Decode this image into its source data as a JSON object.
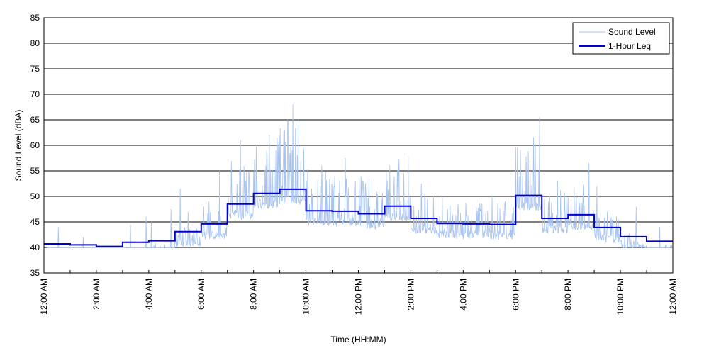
{
  "chart_data": {
    "type": "line",
    "xlabel": "Time (HH:MM)",
    "ylabel": "Sound Level (dBA)",
    "xlim": [
      0,
      24
    ],
    "ylim": [
      35,
      85
    ],
    "yticks": [
      35,
      40,
      45,
      50,
      55,
      60,
      65,
      70,
      75,
      80,
      85
    ],
    "xticks": [
      {
        "hour": 0,
        "label": "12:00 AM"
      },
      {
        "hour": 2,
        "label": "2:00 AM"
      },
      {
        "hour": 4,
        "label": "4:00 AM"
      },
      {
        "hour": 6,
        "label": "6:00 AM"
      },
      {
        "hour": 8,
        "label": "8:00 AM"
      },
      {
        "hour": 10,
        "label": "10:00 AM"
      },
      {
        "hour": 12,
        "label": "12:00 PM"
      },
      {
        "hour": 14,
        "label": "2:00 PM"
      },
      {
        "hour": 16,
        "label": "4:00 PM"
      },
      {
        "hour": 18,
        "label": "6:00 PM"
      },
      {
        "hour": 20,
        "label": "8:00 PM"
      },
      {
        "hour": 22,
        "label": "10:00 PM"
      },
      {
        "hour": 24,
        "label": "12:00 AM"
      }
    ],
    "grid": "horizontal",
    "legend_position": "top-right",
    "series": [
      {
        "name": "Sound Level",
        "color": "#a7c3f2",
        "style": "thin-line",
        "peaks": [
          {
            "hour": 0.55,
            "value": 44
          },
          {
            "hour": 1.5,
            "value": 42
          },
          {
            "hour": 3.3,
            "value": 44.5
          },
          {
            "hour": 3.9,
            "value": 46
          },
          {
            "hour": 4.1,
            "value": 45
          },
          {
            "hour": 4.85,
            "value": 47.5
          },
          {
            "hour": 5.2,
            "value": 51.5
          },
          {
            "hour": 5.5,
            "value": 47
          },
          {
            "hour": 6.1,
            "value": 48
          },
          {
            "hour": 6.3,
            "value": 49
          },
          {
            "hour": 6.7,
            "value": 55
          },
          {
            "hour": 7.2,
            "value": 50
          },
          {
            "hour": 7.5,
            "value": 61
          },
          {
            "hour": 7.7,
            "value": 53
          },
          {
            "hour": 8.1,
            "value": 60
          },
          {
            "hour": 8.5,
            "value": 59
          },
          {
            "hour": 8.9,
            "value": 61.5
          },
          {
            "hour": 9.4,
            "value": 55
          },
          {
            "hour": 9.5,
            "value": 68
          },
          {
            "hour": 9.8,
            "value": 57
          },
          {
            "hour": 10.6,
            "value": 56
          },
          {
            "hour": 11.1,
            "value": 54
          },
          {
            "hour": 11.5,
            "value": 57.5
          },
          {
            "hour": 12.1,
            "value": 54
          },
          {
            "hour": 12.4,
            "value": 53.5
          },
          {
            "hour": 13.1,
            "value": 53
          },
          {
            "hour": 13.9,
            "value": 58
          },
          {
            "hour": 14.4,
            "value": 52.5
          },
          {
            "hour": 15.2,
            "value": 50
          },
          {
            "hour": 15.8,
            "value": 48.5
          },
          {
            "hour": 16.6,
            "value": 48
          },
          {
            "hour": 17.1,
            "value": 50
          },
          {
            "hour": 17.6,
            "value": 49
          },
          {
            "hour": 18.2,
            "value": 52
          },
          {
            "hour": 18.7,
            "value": 53.5
          },
          {
            "hour": 18.92,
            "value": 65.5
          },
          {
            "hour": 19.6,
            "value": 53
          },
          {
            "hour": 20.3,
            "value": 49
          },
          {
            "hour": 20.8,
            "value": 56.5
          },
          {
            "hour": 21.1,
            "value": 52
          },
          {
            "hour": 21.5,
            "value": 47
          },
          {
            "hour": 22.6,
            "value": 48
          },
          {
            "hour": 23.5,
            "value": 44
          }
        ]
      },
      {
        "name": "1-Hour Leq",
        "color": "#0000cc",
        "style": "step",
        "hourly_values": [
          40.7,
          40.5,
          40.2,
          41.0,
          41.3,
          43.1,
          44.6,
          48.5,
          50.6,
          51.4,
          47.2,
          47.1,
          46.6,
          48.1,
          45.7,
          44.7,
          44.6,
          44.5,
          50.2,
          45.7,
          46.4,
          43.9,
          42.1,
          41.2
        ]
      }
    ]
  }
}
